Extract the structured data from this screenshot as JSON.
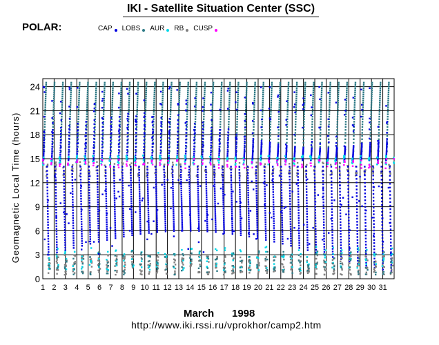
{
  "header": {
    "title": "IKI - Satellite Situation Center (SSC)",
    "satellite_label": "POLAR:"
  },
  "legend": [
    {
      "label": "CAP",
      "color": "#0000e0"
    },
    {
      "label": "LOBS",
      "color": "#2e7a86"
    },
    {
      "label": "AUR",
      "color": "#00d8e8"
    },
    {
      "label": "RB",
      "color": "#808080"
    },
    {
      "label": "CUSP",
      "color": "#ff00ff"
    }
  ],
  "footer": {
    "month": "March",
    "year": "1998",
    "url": "http://www.iki.rssi.ru/vprokhor/camp2.htm"
  },
  "chart_data": {
    "type": "scatter",
    "title": "IKI - Satellite Situation Center (SSC)",
    "xlabel": "March 1998",
    "ylabel": "Geomagnetic Local Time (hours)",
    "xlim": [
      1,
      32
    ],
    "ylim": [
      0,
      25
    ],
    "x_ticks": [
      "1",
      "2",
      "3",
      "4",
      "5",
      "6",
      "7",
      "8",
      "9",
      "10",
      "11",
      "12",
      "13",
      "14",
      "15",
      "16",
      "17",
      "18",
      "19",
      "20",
      "21",
      "22",
      "23",
      "24",
      "25",
      "26",
      "27",
      "28",
      "29",
      "30",
      "31"
    ],
    "y_ticks": [
      "0",
      "3",
      "6",
      "9",
      "12",
      "15",
      "18",
      "21",
      "24"
    ],
    "grid": true,
    "orbit_period_days": 0.7375,
    "orbit_start_day": 1.0,
    "series": [
      {
        "name": "CAP",
        "color": "#0000e0",
        "description": "polar cap crossings: near-vertical sweeps from ~15h rising toward 24h and descending drifts from ~14h toward 0h"
      },
      {
        "name": "LOBS",
        "color": "#2e7a86",
        "description": "magnetotail lobe crossings"
      },
      {
        "name": "AUR",
        "color": "#00d8e8",
        "description": "auroral zone crossings near ~2-4h and ~13-15h"
      },
      {
        "name": "RB",
        "color": "#808080",
        "description": "radiation belt crossings near 0-3h and 12-14h"
      },
      {
        "name": "CUSP",
        "color": "#ff00ff",
        "description": "cusp crossings near 13-15h"
      }
    ]
  }
}
